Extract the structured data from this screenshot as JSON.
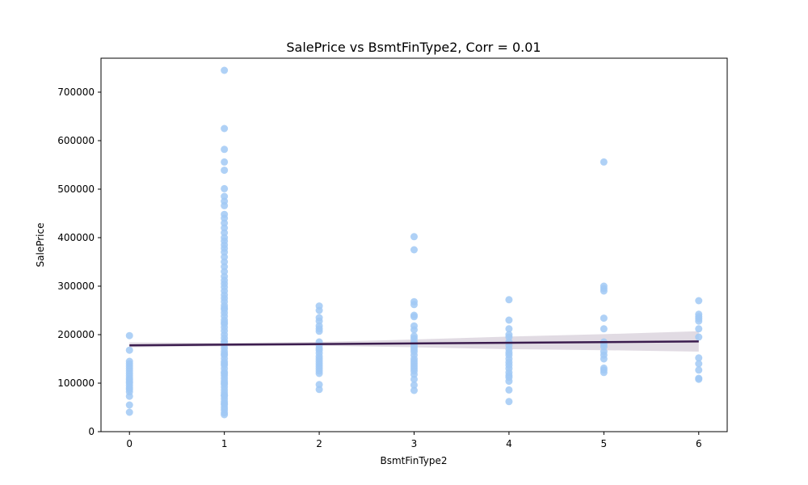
{
  "chart_data": {
    "type": "scatter",
    "title": "SalePrice vs BsmtFinType2, Corr = 0.01",
    "xlabel": "BsmtFinType2",
    "ylabel": "SalePrice",
    "xlim": [
      -0.3,
      6.3
    ],
    "ylim": [
      0,
      770000
    ],
    "x_ticks": [
      0,
      1,
      2,
      3,
      4,
      5,
      6
    ],
    "y_ticks": [
      0,
      100000,
      200000,
      300000,
      400000,
      500000,
      600000,
      700000
    ],
    "grid": false,
    "legend": "none",
    "colors": {
      "points": "#a1c9f4",
      "regression_line": "#3b1c4e",
      "confidence_band": "#d9d2dc"
    },
    "series": [
      {
        "x": [
          0,
          0,
          0,
          0,
          0,
          0,
          0,
          0,
          0,
          0,
          0,
          0,
          0,
          0,
          0,
          0,
          0,
          0,
          0,
          0,
          1,
          1,
          1,
          1,
          1,
          1,
          1,
          1,
          1,
          1,
          1,
          1,
          1,
          1,
          1,
          1,
          1,
          1,
          1,
          1,
          1,
          1,
          1,
          1,
          1,
          1,
          1,
          1,
          1,
          1,
          1,
          1,
          1,
          1,
          1,
          1,
          1,
          1,
          1,
          1,
          1,
          1,
          1,
          1,
          1,
          1,
          1,
          1,
          1,
          1,
          1,
          1,
          1,
          1,
          1,
          1,
          1,
          1,
          1,
          1,
          1,
          1,
          1,
          1,
          1,
          1,
          1,
          1,
          1,
          1,
          1,
          1,
          1,
          1,
          1,
          2,
          2,
          2,
          2,
          2,
          2,
          2,
          2,
          2,
          2,
          2,
          2,
          2,
          2,
          2,
          2,
          2,
          2,
          2,
          2,
          2,
          2,
          3,
          3,
          3,
          3,
          3,
          3,
          3,
          3,
          3,
          3,
          3,
          3,
          3,
          3,
          3,
          3,
          3,
          3,
          3,
          3,
          3,
          3,
          3,
          3,
          3,
          3,
          4,
          4,
          4,
          4,
          4,
          4,
          4,
          4,
          4,
          4,
          4,
          4,
          4,
          4,
          4,
          4,
          4,
          4,
          4,
          4,
          5,
          5,
          5,
          5,
          5,
          5,
          5,
          5,
          5,
          5,
          5,
          5,
          5,
          5,
          5,
          6,
          6,
          6,
          6,
          6,
          6,
          6,
          6,
          6,
          6,
          6,
          6
        ],
        "y": [
          198000,
          168000,
          145000,
          140000,
          135000,
          130000,
          125000,
          120000,
          115000,
          110000,
          107000,
          103000,
          100000,
          95000,
          90000,
          87000,
          82000,
          73000,
          55000,
          40000,
          745000,
          625000,
          582000,
          556000,
          539000,
          501000,
          485000,
          475000,
          466000,
          448000,
          440000,
          430000,
          420000,
          410000,
          400000,
          393000,
          385000,
          378000,
          370000,
          360000,
          350000,
          340000,
          330000,
          320000,
          312000,
          305000,
          298000,
          290000,
          282000,
          275000,
          268000,
          260000,
          252000,
          245000,
          238000,
          230000,
          222000,
          215000,
          208000,
          200000,
          193000,
          186000,
          179000,
          172000,
          165000,
          158000,
          151000,
          144000,
          137000,
          130000,
          123000,
          116000,
          110000,
          104000,
          98000,
          92000,
          86000,
          80000,
          74000,
          68000,
          62000,
          56000,
          50000,
          45000,
          39000,
          35000,
          255000,
          225000,
          185000,
          160000,
          140000,
          120000,
          100000,
          75000,
          58000,
          259000,
          250000,
          235000,
          228000,
          218000,
          212000,
          207000,
          185000,
          178000,
          172000,
          168000,
          162000,
          155000,
          150000,
          145000,
          140000,
          135000,
          130000,
          125000,
          120000,
          97000,
          87000,
          402000,
          375000,
          268000,
          262000,
          240000,
          237000,
          218000,
          210000,
          197000,
          192000,
          185000,
          180000,
          175000,
          170000,
          165000,
          158000,
          150000,
          145000,
          140000,
          135000,
          130000,
          125000,
          118000,
          108000,
          96000,
          85000,
          272000,
          230000,
          212000,
          200000,
          195000,
          185000,
          178000,
          170000,
          163000,
          158000,
          150000,
          143000,
          137000,
          130000,
          122000,
          116000,
          112000,
          104000,
          86000,
          62000,
          556000,
          300000,
          295000,
          290000,
          234000,
          212000,
          185000,
          180000,
          175000,
          165000,
          158000,
          150000,
          131000,
          127000,
          122000,
          270000,
          242000,
          237000,
          233000,
          228000,
          212000,
          195000,
          152000,
          140000,
          127000,
          110000,
          108000
        ]
      }
    ],
    "regression": {
      "x": [
        0,
        6
      ],
      "y": [
        178000,
        186000
      ]
    },
    "confidence_band": {
      "x": [
        0,
        1,
        2,
        3,
        4,
        5,
        6
      ],
      "lower": [
        174000,
        176000,
        177000,
        174000,
        170000,
        168000,
        165000
      ],
      "upper": [
        184000,
        183000,
        185000,
        190000,
        196000,
        201000,
        207000
      ]
    }
  }
}
